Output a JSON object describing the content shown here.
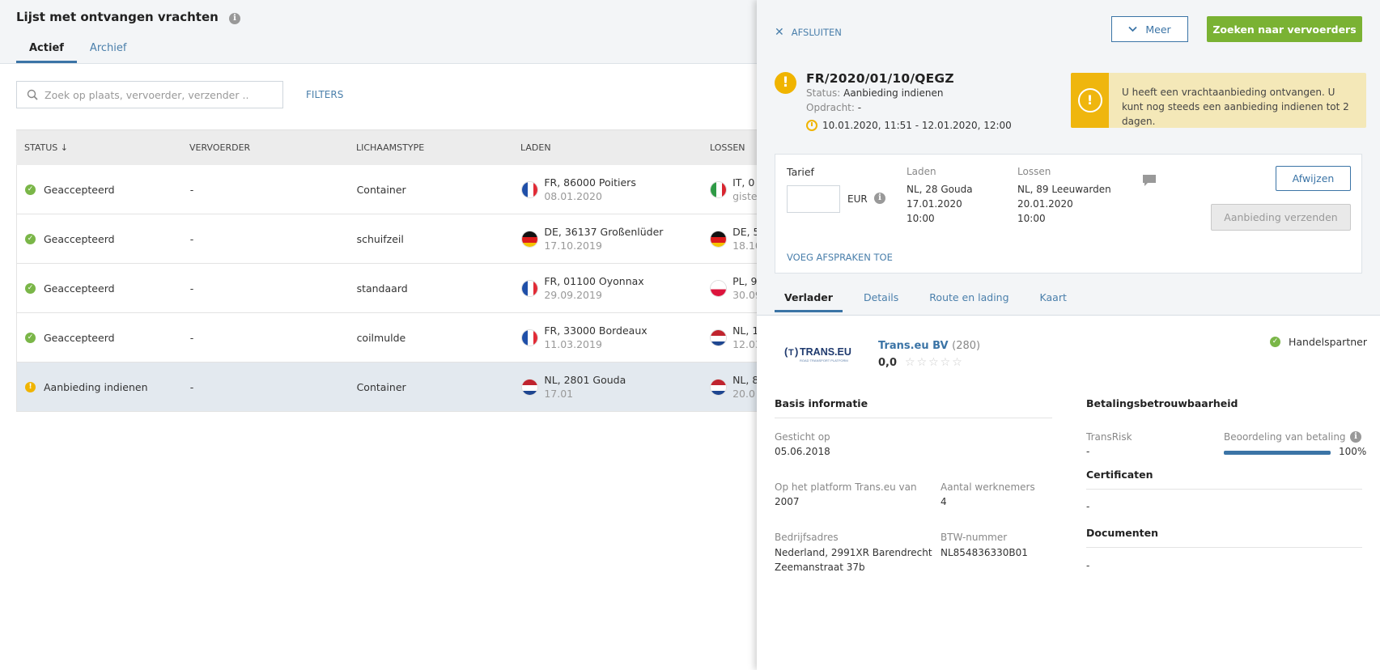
{
  "list": {
    "title": "Lijst met ontvangen vrachten",
    "tabs": [
      {
        "label": "Actief"
      },
      {
        "label": "Archief"
      }
    ],
    "search_placeholder": "Zoek op plaats, vervoerder, verzender ..",
    "filters_label": "FILTERS",
    "columns": [
      "STATUS ↓",
      "VERVOERDER",
      "LICHAAMSTYPE",
      "LADEN",
      "LOSSEN"
    ],
    "rows": [
      {
        "status": "Geaccepteerd",
        "carrier": "-",
        "body": "Container",
        "load_place": "FR, 86000 Poitiers",
        "load_date": "08.01.2020",
        "unload_place": "IT, 0",
        "unload_date": "giste",
        "load_flag": "fr",
        "unload_flag": "it"
      },
      {
        "status": "Geaccepteerd",
        "carrier": "-",
        "body": "schuifzeil",
        "load_place": "DE, 36137 Großenlüder",
        "load_date": "17.10.2019",
        "unload_place": "DE, 5",
        "unload_date": "18.10",
        "load_flag": "de",
        "unload_flag": "de"
      },
      {
        "status": "Geaccepteerd",
        "carrier": "-",
        "body": "standaard",
        "load_place": "FR, 01100 Oyonnax",
        "load_date": "29.09.2019",
        "unload_place": "PL, 9",
        "unload_date": "30.09",
        "load_flag": "fr",
        "unload_flag": "pl"
      },
      {
        "status": "Geaccepteerd",
        "carrier": "-",
        "body": "coilmulde",
        "load_place": "FR, 33000 Bordeaux",
        "load_date": "11.03.2019",
        "unload_place": "NL, 1",
        "unload_date": "12.03",
        "load_flag": "fr",
        "unload_flag": "nl"
      },
      {
        "status": "Aanbieding indienen",
        "carrier": "-",
        "body": "Container",
        "load_place": "NL, 2801 Gouda",
        "load_date": "17.01",
        "unload_place": "NL, 8",
        "unload_date": "20.0",
        "load_flag": "nl",
        "unload_flag": "nl"
      }
    ]
  },
  "panel": {
    "close_label": "AFSLUITEN",
    "more_label": "Meer",
    "search_carriers_label": "Zoeken naar vervoerders",
    "ref_no": "FR/2020/01/10/QEGZ",
    "status_label": "Status:",
    "status_value": "Aanbieding indienen",
    "order_label": "Opdracht:",
    "order_value": "-",
    "time_range": "10.01.2020, 11:51 - 12.01.2020, 12:00",
    "alert_text": "U heeft een vrachtaanbieding ontvangen. U kunt nog steeds een aanbieding indienen tot 2 dagen.",
    "offer": {
      "tarief_label": "Tarief",
      "currency": "EUR",
      "load_label": "Laden",
      "load_place": "NL, 28 Gouda",
      "load_date": "17.01.2020",
      "load_time": "10:00",
      "unload_label": "Lossen",
      "unload_place": "NL, 89 Leeuwarden",
      "unload_date": "20.01.2020",
      "unload_time": "10:00",
      "reject_label": "Afwijzen",
      "send_label": "Aanbieding verzenden",
      "add_agreements_label": "VOEG AFSPRAKEN TOE"
    },
    "tabs": [
      {
        "label": "Verlader"
      },
      {
        "label": "Details"
      },
      {
        "label": "Route en lading"
      },
      {
        "label": "Kaart"
      }
    ],
    "company": {
      "logo_text": "TRANS.EU",
      "logo_sub": "ROAD TRANSPORT PLATFORM",
      "name": "Trans.eu BV",
      "count": "(280)",
      "rating": "0,0",
      "stars": "☆☆☆☆☆",
      "partner_label": "Handelspartner"
    },
    "basis": {
      "title": "Basis informatie",
      "founded_label": "Gesticht op",
      "founded_value": "05.06.2018",
      "platform_label": "Op het platform Trans.eu van",
      "platform_value": "2007",
      "employees_label": "Aantal werknemers",
      "employees_value": "4",
      "address_label": "Bedrijfsadres",
      "address_line1": "Nederland, 2991XR Barendrecht",
      "address_line2": "Zeemanstraat 37b",
      "vat_label": "BTW-nummer",
      "vat_value": "NL854836330B01"
    },
    "payment": {
      "title": "Betalingsbetrouwbaarheid",
      "transrisk_label": "TransRisk",
      "transrisk_value": "-",
      "rating_label": "Beoordeling van betaling",
      "rating_percent": 100,
      "rating_text": "100%",
      "cert_title": "Certificaten",
      "cert_value": "-",
      "docs_title": "Documenten",
      "docs_value": "-"
    }
  },
  "colors": {
    "accent": "#3b74a6",
    "success": "#7ab648",
    "warning": "#f0b400",
    "primary_button": "#7ab233"
  }
}
